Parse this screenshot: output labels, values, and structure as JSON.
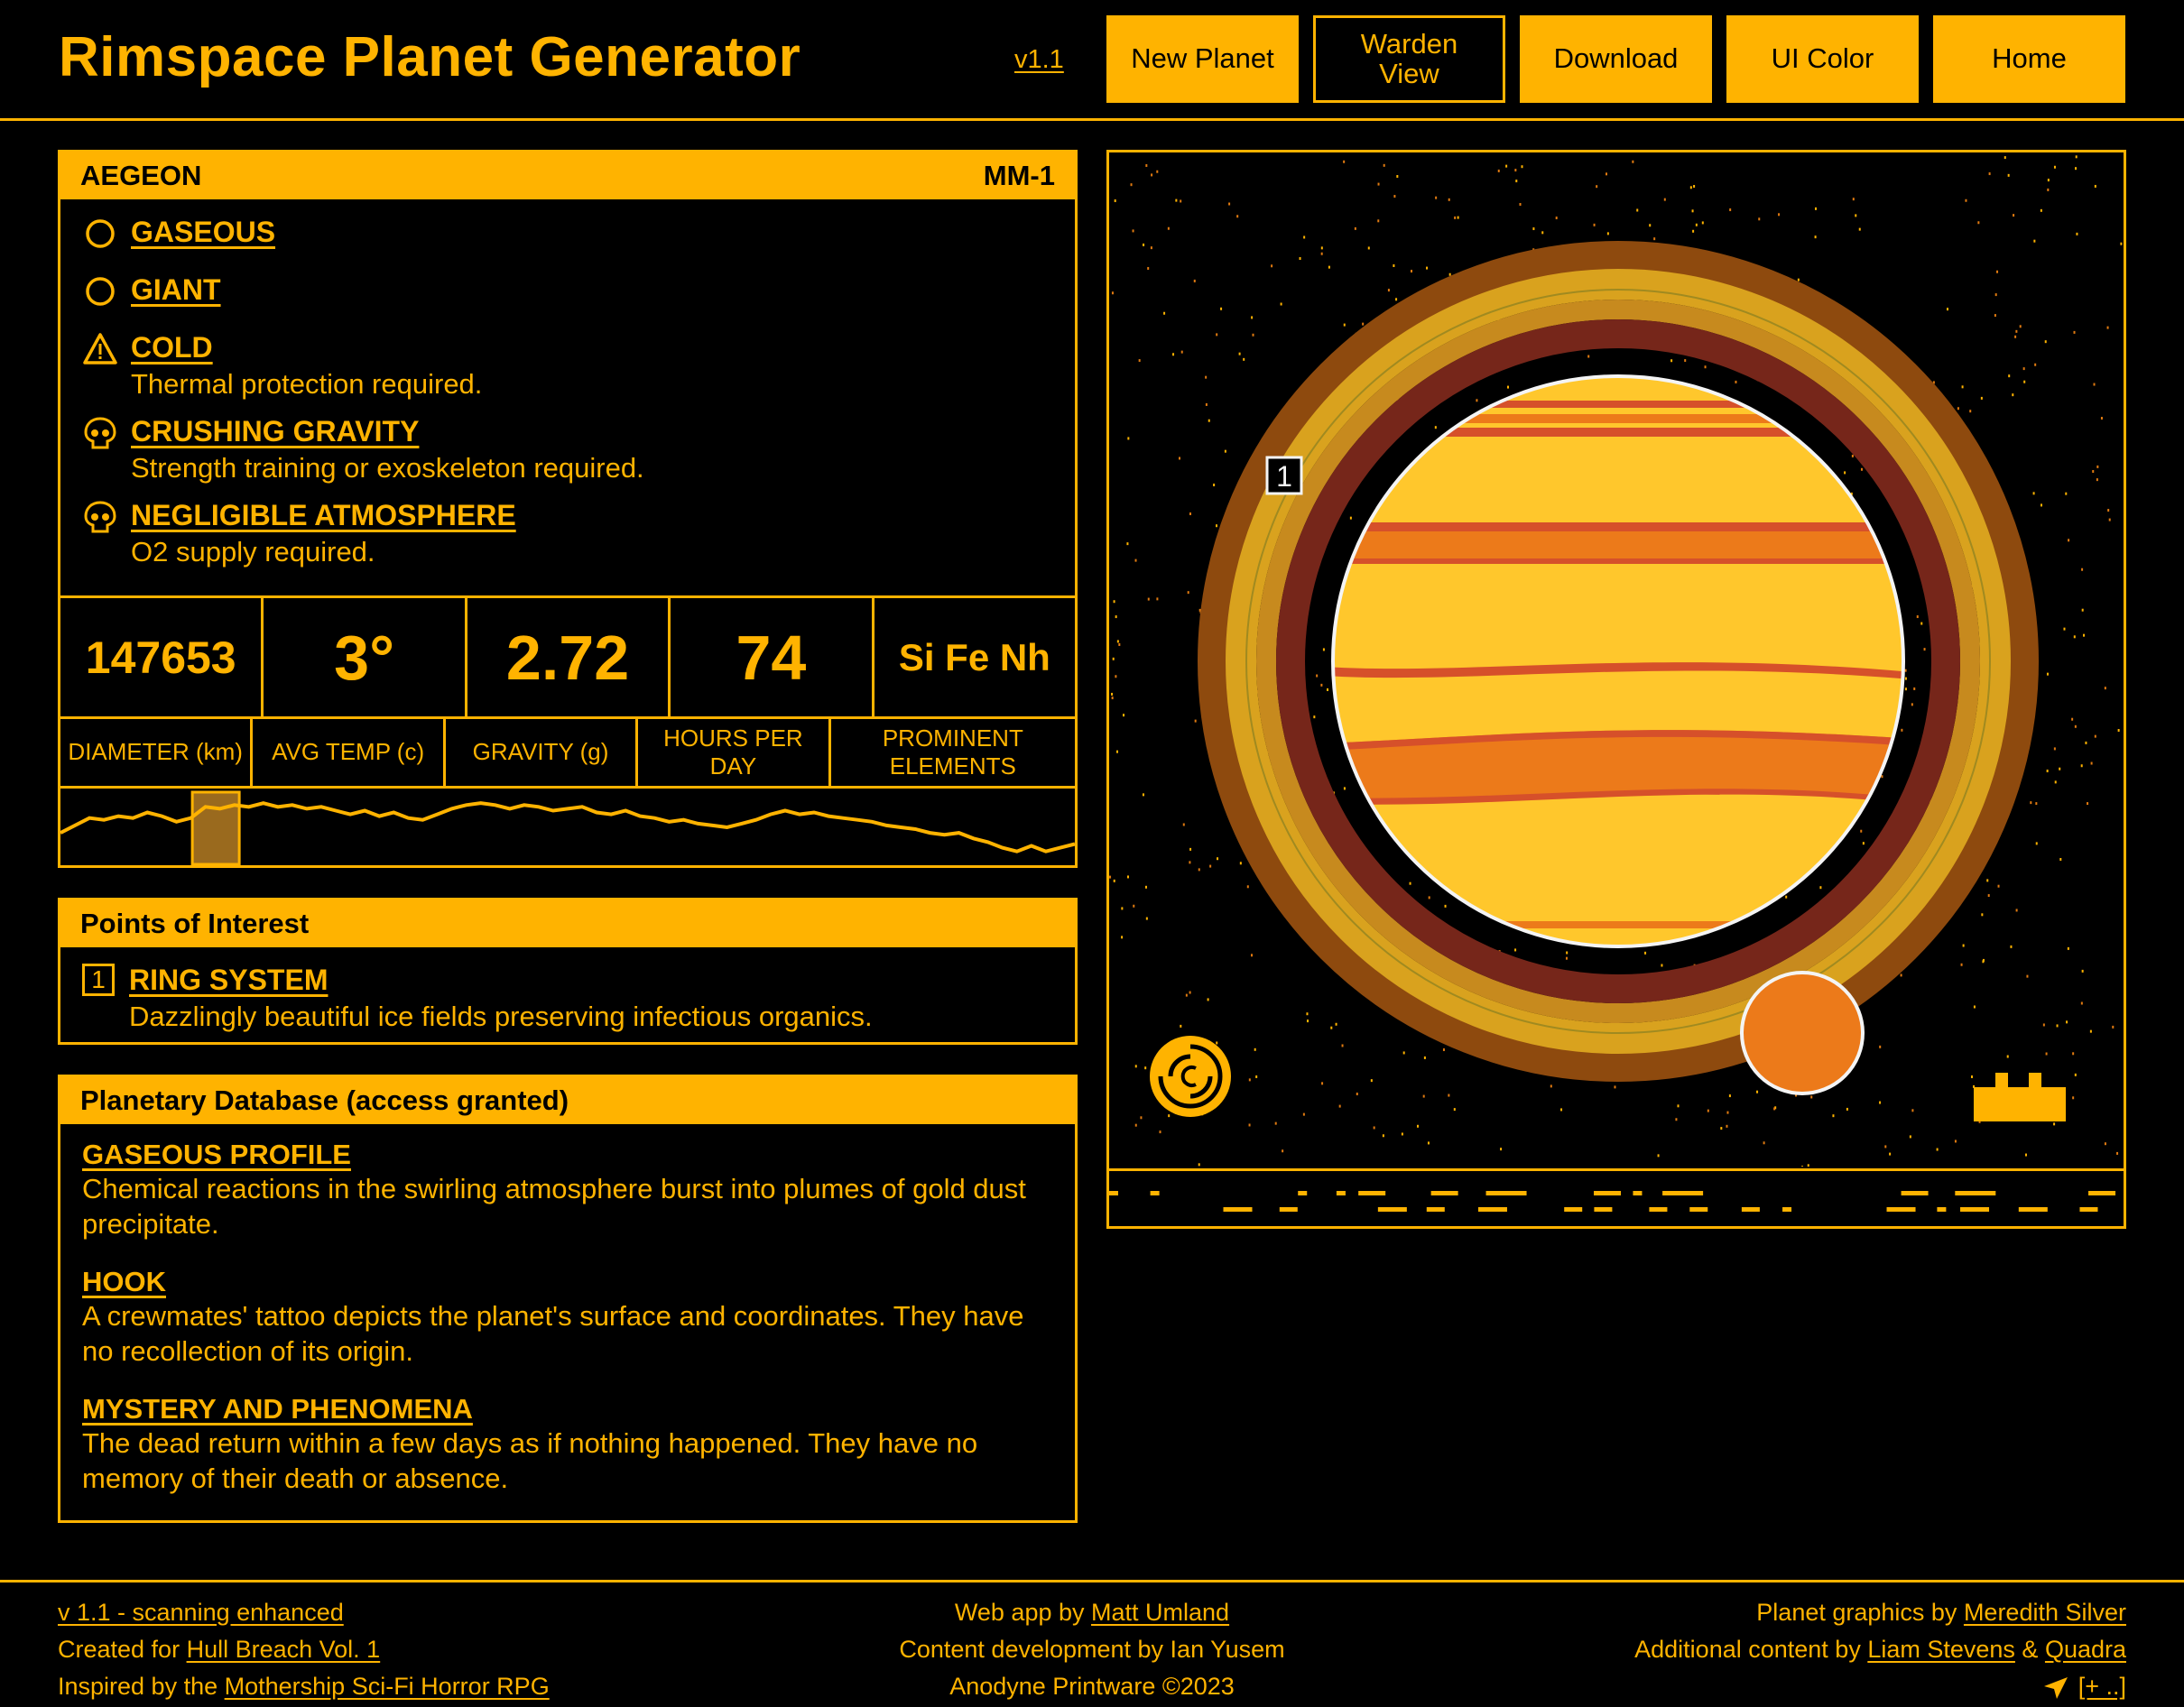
{
  "header": {
    "title": "Rimspace Planet Generator",
    "version_link": "v1.1",
    "buttons": [
      {
        "label": "New Planet",
        "style": "filled"
      },
      {
        "label": "Warden View",
        "style": "outline"
      },
      {
        "label": "Download",
        "style": "filled"
      },
      {
        "label": "UI Color",
        "style": "filled"
      },
      {
        "label": "Home",
        "style": "filled"
      }
    ]
  },
  "colors": {
    "accent": "#FFB300",
    "background": "#000000",
    "planet_base": "#FFC72C",
    "planet_band_orange": "#EC7A1A",
    "planet_band_red": "#D6502A",
    "ring_outer": "#8E4A0E",
    "ring_gold": "#D9A21E",
    "ring_dark": "#76261A",
    "moon": "#EC7A1A"
  },
  "planet": {
    "name": "AEGEON",
    "code": "MM-1",
    "traits": [
      {
        "icon": "circle-icon",
        "name": "GASEOUS",
        "desc": ""
      },
      {
        "icon": "circle-icon",
        "name": "GIANT",
        "desc": ""
      },
      {
        "icon": "warning-icon",
        "name": "COLD",
        "desc": "Thermal protection required."
      },
      {
        "icon": "skull-icon",
        "name": "CRUSHING GRAVITY",
        "desc": "Strength training or exoskeleton required."
      },
      {
        "icon": "skull-icon",
        "name": "NEGLIGIBLE ATMOSPHERE",
        "desc": "O2 supply required."
      }
    ],
    "stats": [
      {
        "value": "147653",
        "label": "DIAMETER (km)"
      },
      {
        "value": "3°",
        "label": "AVG TEMP (c)"
      },
      {
        "value": "2.72",
        "label": "GRAVITY (g)"
      },
      {
        "value": "74",
        "label": "HOURS PER DAY"
      },
      {
        "value": "Si Fe Nh",
        "label": "PROMINENT ELEMENTS"
      }
    ],
    "scan_profile": [
      30,
      38,
      46,
      44,
      48,
      46,
      52,
      48,
      42,
      46,
      58,
      56,
      60,
      58,
      62,
      58,
      60,
      56,
      58,
      54,
      50,
      54,
      48,
      52,
      46,
      44,
      50,
      56,
      60,
      62,
      60,
      56,
      60,
      58,
      54,
      56,
      58,
      52,
      50,
      54,
      48,
      46,
      42,
      44,
      40,
      38,
      36,
      40,
      44,
      50,
      54,
      50,
      52,
      48,
      46,
      44,
      42,
      38,
      36,
      34,
      30,
      28,
      30,
      24,
      20,
      14,
      10,
      16,
      10,
      14,
      18
    ],
    "scan_marker_fraction": 0.13
  },
  "poi": {
    "title": "Points of Interest",
    "items": [
      {
        "number": "1",
        "name": "RING SYSTEM",
        "desc": "Dazzlingly beautiful ice fields preserving infectious organics."
      }
    ]
  },
  "database": {
    "title": "Planetary Database (access granted)",
    "entries": [
      {
        "title": "GASEOUS PROFILE",
        "text": "Chemical reactions in the swirling atmosphere burst into plumes of gold dust precipitate."
      },
      {
        "title": "HOOK",
        "text": "A crewmates' tattoo depicts the planet's surface and coordinates. They have no recollection of its origin."
      },
      {
        "title": "MYSTERY AND PHENOMENA",
        "text": "The dead return within a few days as if nothing happened. They have no memory of their death or absence."
      }
    ]
  },
  "viewer": {
    "poi_marker": "1",
    "icons": [
      "copyright-spiral-icon",
      "ship-silhouette-icon"
    ]
  },
  "footer": {
    "left": [
      {
        "link": "v 1.1 - scanning enhanced"
      },
      {
        "pre": "Created for ",
        "link": "Hull Breach Vol. 1"
      },
      {
        "pre": "Inspired by the ",
        "link": "Mothership Sci-Fi Horror RPG"
      }
    ],
    "center": [
      {
        "pre": "Web app by ",
        "link": "Matt Umland"
      },
      {
        "pre": "Content development by Ian Yusem"
      },
      {
        "pre": "Anodyne Printware ©2023"
      }
    ],
    "right": [
      {
        "pre": "Planet graphics by ",
        "link": "Meredith Silver"
      },
      {
        "pre": "Additional content by ",
        "link": "Liam Stevens",
        "mid": " & ",
        "link2": "Quadra"
      },
      {
        "link": "[+ ..]",
        "icon": "send-arrow-icon"
      }
    ]
  }
}
